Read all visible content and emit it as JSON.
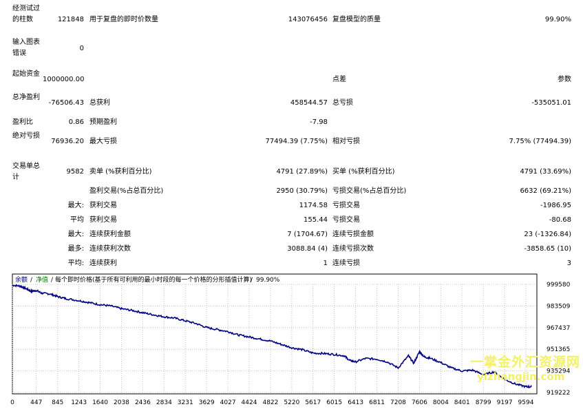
{
  "report": {
    "bars_tested": {
      "label": "经测试过的柱数",
      "value": "121848"
    },
    "ticks_modelled": {
      "label": "用于复盘的即时价数量",
      "value": "143076456"
    },
    "modelling_quality": {
      "label": "复盘模型的质量",
      "value": "99.90%"
    },
    "mismatched_errors": {
      "label": "输入图表错误",
      "value": "0"
    },
    "initial_deposit": {
      "label": "起始资金",
      "value": "1000000.00"
    },
    "spread": {
      "label": "点差",
      "value": "参数"
    },
    "net_profit": {
      "label": "总净盈利",
      "value": "-76506.43"
    },
    "gross_profit": {
      "label": "总获利",
      "value": "458544.57"
    },
    "gross_loss": {
      "label": "总亏损",
      "value": "-535051.01"
    },
    "profit_factor": {
      "label": "盈利比",
      "value": "0.86"
    },
    "expected_payoff": {
      "label": "预期盈利",
      "value": "-7.98"
    },
    "absolute_drawdown": {
      "label": "绝对亏损",
      "value": "76936.20"
    },
    "maximal_drawdown": {
      "label": "最大亏损",
      "value": "77494.39 (7.75%)"
    },
    "relative_drawdown": {
      "label": "相对亏损",
      "value": "7.75% (77494.39)"
    },
    "total_trades": {
      "label": "交易单总计",
      "value": "9582"
    },
    "short_positions": {
      "label": "卖单 (%获利百分比)",
      "value": "4791 (27.89%)"
    },
    "long_positions": {
      "label": "买单 (%获利百分比)",
      "value": "4791 (33.69%)"
    },
    "profit_trades": {
      "label": "盈利交易(%占总百分比)",
      "value": "2950 (30.79%)"
    },
    "loss_trades": {
      "label": "亏损交易(%占总百分比)",
      "value": "6632 (69.21%)"
    },
    "largest": {
      "label": "最大:",
      "profit_label": "获利交易",
      "profit": "1174.58",
      "loss_label": "亏损交易",
      "loss": "-1986.95"
    },
    "average": {
      "label": "平均",
      "profit_label": "获利交易",
      "profit": "155.44",
      "loss_label": "亏损交易",
      "loss": "-80.68"
    },
    "max_consecutive": {
      "label": "最大:",
      "win_label": "连续获利金额",
      "win": "7 (1704.67)",
      "loss_label": "连续亏损金额",
      "loss": "23 (-1326.84)"
    },
    "maximal_consecutive": {
      "label": "最多:",
      "win_label": "连续获利次数",
      "win": "3088.84 (4)",
      "loss_label": "连续亏损次数",
      "loss": "-3858.65 (10)"
    },
    "avg_consecutive": {
      "label": "平均:",
      "win_label": "连续获利",
      "win": "1",
      "loss_label": "连续亏损",
      "loss": "3"
    }
  },
  "watermark": {
    "line1": "一掌金外汇资源网",
    "line2": "yizhangjin.com"
  },
  "chart_data": {
    "type": "line",
    "legend": {
      "balance": "余额",
      "equity": "净值",
      "description": "每个即时价格(基于所有可利用的最小时段的每一个价格的分形插值计算)",
      "quality": "99.90%"
    },
    "x_ticks": [
      "0",
      "447",
      "845",
      "1243",
      "1640",
      "2038",
      "2436",
      "2834",
      "3231",
      "3629",
      "4027",
      "4424",
      "4822",
      "5220",
      "5617",
      "6015",
      "6413",
      "6811",
      "7208",
      "7606",
      "8004",
      "8401",
      "8799",
      "9197",
      "9594"
    ],
    "y_ticks": [
      "999580",
      "983509",
      "967437",
      "951365",
      "935294",
      "919222"
    ],
    "ylim": [
      919222,
      999580
    ],
    "xlim": [
      0,
      9800
    ],
    "grid": true,
    "colors": {
      "line": "#000080",
      "grid": "#c0c0c0",
      "axis": "#000000"
    },
    "series": [
      {
        "x": [
          0,
          150,
          250,
          350,
          447,
          550,
          700,
          845,
          1000,
          1243,
          1440,
          1640,
          1840,
          2038,
          2236,
          2436,
          2634,
          2834,
          3031,
          3231,
          3430,
          3629,
          3830,
          4027,
          4220,
          4424,
          4620,
          4822,
          5020,
          5220,
          5420,
          5617,
          5820,
          6015,
          6200,
          6300,
          6413,
          6600,
          6811,
          7000,
          7208,
          7400,
          7500,
          7606,
          7700,
          7800,
          8004,
          8200,
          8401,
          8600,
          8799,
          9000,
          9197,
          9400,
          9594,
          9700
        ],
        "y": [
          999000,
          998300,
          996500,
          994500,
          995000,
          993000,
          992500,
          990500,
          989000,
          987500,
          986000,
          984500,
          983500,
          981500,
          980200,
          978500,
          977000,
          975500,
          974500,
          972500,
          970500,
          967500,
          966000,
          964500,
          962000,
          960500,
          959000,
          957500,
          955000,
          952500,
          951000,
          948500,
          948200,
          947500,
          946500,
          943000,
          942000,
          944500,
          944000,
          942000,
          937500,
          946500,
          941000,
          949500,
          945500,
          944800,
          941500,
          937500,
          935200,
          935800,
          932500,
          934500,
          929000,
          925500,
          923500,
          923500
        ]
      }
    ]
  }
}
